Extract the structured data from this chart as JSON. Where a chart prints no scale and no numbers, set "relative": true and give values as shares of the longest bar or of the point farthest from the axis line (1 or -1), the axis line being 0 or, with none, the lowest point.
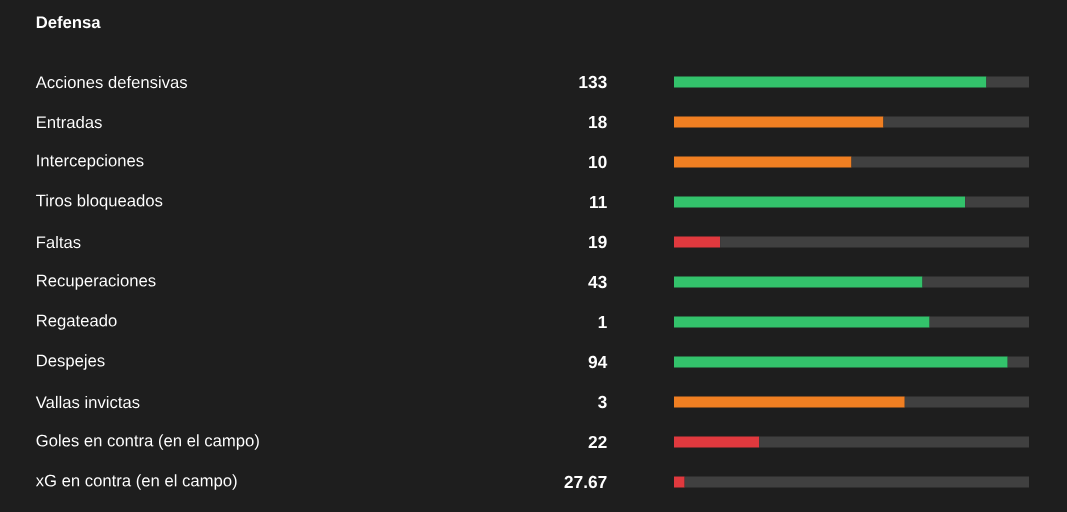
{
  "chart_data": {
    "type": "bar",
    "orientation": "horizontal",
    "stacked": true,
    "relative": true,
    "title": "Defensa",
    "categories": [
      "Acciones defensivas",
      "Entradas",
      "Intercepciones",
      "Tiros bloqueados",
      "Faltas",
      "Recuperaciones",
      "Regateado",
      "Despejes",
      "Vallas invictas",
      "Goles en contra (en el campo)",
      "xG en contra (en el campo)"
    ],
    "series": [
      {
        "colors": [
          "#33c26b",
          "#f07f22",
          "#f07f22",
          "#33c26b",
          "#e0393e",
          "#33c26b",
          "#33c26b",
          "#33c26b",
          "#f07f22",
          "#e0393e",
          "#e0393e"
        ],
        "values": [
          0.88,
          0.59,
          0.5,
          0.82,
          0.13,
          0.7,
          0.72,
          0.94,
          0.65,
          0.24,
          0.03
        ]
      },
      {
        "color": "#404040",
        "values": [
          0.12,
          0.41,
          0.5,
          0.18,
          0.87,
          0.3,
          0.28,
          0.06,
          0.35,
          0.76,
          0.97
        ]
      }
    ],
    "annotations": [
      "133",
      "18",
      "10",
      "11",
      "19",
      "43",
      "1",
      "94",
      "3",
      "22",
      "27.67"
    ]
  }
}
